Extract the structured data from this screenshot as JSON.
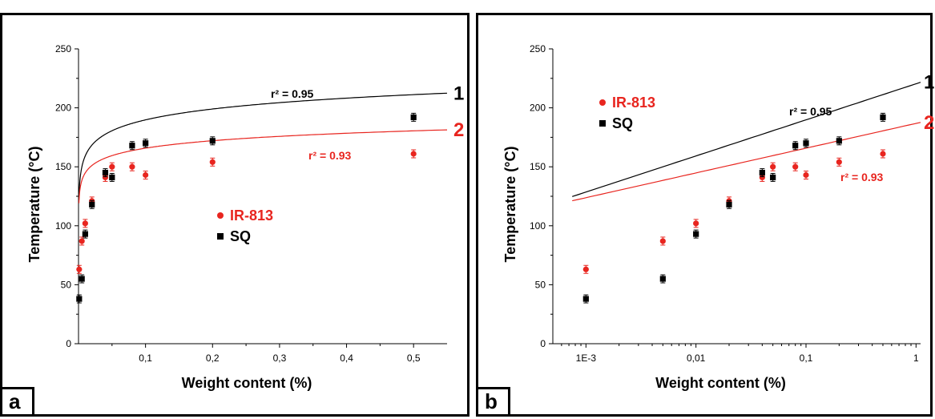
{
  "panels": [
    {
      "letter": "a"
    },
    {
      "letter": "b"
    }
  ],
  "chart_data": [
    {
      "type": "scatter",
      "panel": "a",
      "xlabel": "Weight content (%)",
      "ylabel": "Temperature (°C)",
      "xscale": "linear",
      "xlim": [
        0,
        0.55
      ],
      "ylim": [
        0,
        250
      ],
      "xticks": [
        0.1,
        0.2,
        0.3,
        0.4,
        0.5
      ],
      "xtick_labels": [
        "0,1",
        "0,2",
        "0,3",
        "0,4",
        "0,5"
      ],
      "yticks": [
        0,
        50,
        100,
        150,
        200,
        250
      ],
      "ytick_labels": [
        "0",
        "50",
        "100",
        "150",
        "200",
        "250"
      ],
      "legend": [
        "IR-813",
        "SQ"
      ],
      "series": [
        {
          "name": "IR-813",
          "color": "#e8251f",
          "marker": "circle",
          "x": [
            0.001,
            0.005,
            0.01,
            0.02,
            0.04,
            0.05,
            0.08,
            0.1,
            0.2,
            0.5
          ],
          "y": [
            63,
            87,
            102,
            121,
            141,
            150,
            150,
            143,
            154,
            161
          ]
        },
        {
          "name": "SQ",
          "color": "#000000",
          "marker": "square",
          "x": [
            0.001,
            0.005,
            0.01,
            0.02,
            0.04,
            0.05,
            0.08,
            0.1,
            0.2,
            0.5
          ],
          "y": [
            38,
            55,
            93,
            118,
            145,
            141,
            168,
            170,
            172,
            192
          ]
        }
      ],
      "fits": [
        {
          "label": "1",
          "color": "#000000",
          "r2": "r² = 0.95",
          "model": "log",
          "a": 220.4,
          "b": 30.6
        },
        {
          "label": "2",
          "color": "#e8251f",
          "r2": "r² = 0.93",
          "model": "log",
          "a": 186.8,
          "b": 21.0
        }
      ]
    },
    {
      "type": "scatter",
      "panel": "b",
      "xlabel": "Weight content (%)",
      "ylabel": "Temperature (°C)",
      "xscale": "log",
      "xlim": [
        0.0005,
        1.1
      ],
      "ylim": [
        0,
        250
      ],
      "xticks": [
        0.001,
        0.01,
        0.1,
        1
      ],
      "xtick_labels": [
        "1E-3",
        "0,01",
        "0,1",
        "1"
      ],
      "yticks": [
        0,
        50,
        100,
        150,
        200,
        250
      ],
      "ytick_labels": [
        "0",
        "50",
        "100",
        "150",
        "200",
        "250"
      ],
      "legend": [
        "IR-813",
        "SQ"
      ],
      "series": [
        {
          "name": "IR-813",
          "color": "#e8251f",
          "marker": "circle",
          "x": [
            0.001,
            0.005,
            0.01,
            0.02,
            0.04,
            0.05,
            0.08,
            0.1,
            0.2,
            0.5
          ],
          "y": [
            63,
            87,
            102,
            121,
            141,
            150,
            150,
            143,
            154,
            161
          ]
        },
        {
          "name": "SQ",
          "color": "#000000",
          "marker": "square",
          "x": [
            0.001,
            0.005,
            0.01,
            0.02,
            0.04,
            0.05,
            0.08,
            0.1,
            0.2,
            0.5
          ],
          "y": [
            38,
            55,
            93,
            118,
            145,
            141,
            168,
            170,
            172,
            192
          ]
        }
      ],
      "fits": [
        {
          "label": "1",
          "color": "#000000",
          "r2": "r² = 0.95",
          "model": "log",
          "a": 220.4,
          "b": 30.6
        },
        {
          "label": "2",
          "color": "#e8251f",
          "r2": "r² = 0.93",
          "model": "log",
          "a": 186.8,
          "b": 21.0
        }
      ]
    }
  ]
}
